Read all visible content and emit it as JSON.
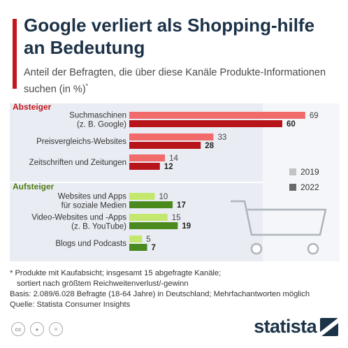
{
  "header": {
    "title": "Google verliert als Shopping-hilfe an Bedeutung",
    "subtitle": "Anteil der Befragten, die über diese Kanäle Produkte-Informationen suchen (in %)",
    "subtitle_mark": "*",
    "accent_color": "#c4161c"
  },
  "chart_data": {
    "type": "bar",
    "orientation": "horizontal",
    "legend": {
      "placement": "right",
      "entries": [
        "2019",
        "2022"
      ]
    },
    "groups": [
      {
        "name": "Absteiger",
        "name_color": "#c4161c",
        "colors": {
          "2019": "#f26b6b",
          "2022": "#b8151b"
        },
        "categories": [
          {
            "label": [
              "Suchmaschinen",
              "(z. B. Google)"
            ],
            "2019": 69,
            "2022": 60
          },
          {
            "label": [
              "Preisvergleichs-Websites"
            ],
            "2019": 33,
            "2022": 28
          },
          {
            "label": [
              "Zeitschriften und Zeitungen"
            ],
            "2019": 14,
            "2022": 12
          }
        ]
      },
      {
        "name": "Aufsteiger",
        "name_color": "#4e7a16",
        "colors": {
          "2019": "#c4e86e",
          "2022": "#4a8a1e"
        },
        "categories": [
          {
            "label": [
              "Websites und Apps",
              "für soziale Medien"
            ],
            "2019": 10,
            "2022": 17
          },
          {
            "label": [
              "Video-Websites und -Apps",
              "(z. B. YouTube)"
            ],
            "2019": 15,
            "2022": 19
          },
          {
            "label": [
              "Blogs und Podcasts"
            ],
            "2019": 5,
            "2022": 7
          }
        ]
      }
    ],
    "xlim": [
      0,
      69
    ],
    "grid": false,
    "background_color": "#e9edf3"
  },
  "notes": {
    "line1": "* Produkte mit Kaufabsicht; insgesamt 15 abgefragte Kanäle;",
    "line2": "sortiert nach größtem Reichweitenverlust/-gewinn",
    "basis": "Basis: 2.089/6.028 Befragte (18-64 Jahre) in Deutschland; Mehrfachantworten möglich",
    "source": "Quelle: Statista Consumer Insights"
  },
  "footer": {
    "license_icons": [
      "cc-icon",
      "by-icon",
      "nd-icon"
    ],
    "logo_text": "statista"
  }
}
